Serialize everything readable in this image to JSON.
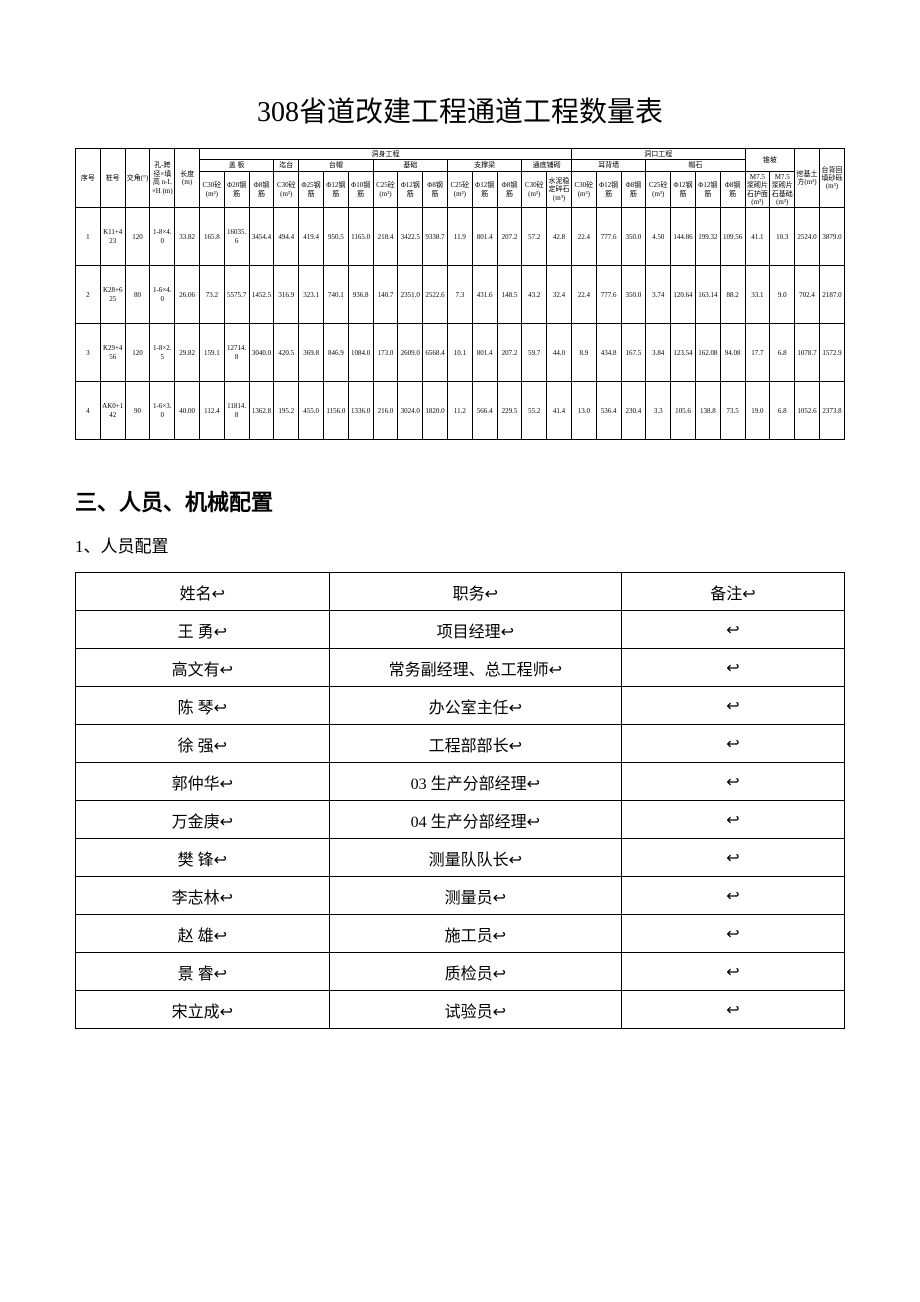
{
  "title": "308省道改建工程通道工程数量表",
  "quantityTable": {
    "groupHeaders": {
      "dongshen": "洞身工程",
      "dongkou": "洞口工程"
    },
    "subHeaders": {
      "gaiban": "盖 板",
      "taitai": "迄台",
      "taimao": "台帽",
      "jichu": "基础",
      "zhichengliang": "支撑梁",
      "tongdaopushe": "通底铺砌",
      "erbeiqiang": "耳背墙",
      "maoshi": "帽石",
      "zhuipo": "锥坡"
    },
    "colHeaders": {
      "xuhao": "序号",
      "zhuanghao": "桩号",
      "jiaojiao": "交角(°)",
      "kongkua": "孔-跨径×填高 n-L×H (m)",
      "changdu": "长度(m)",
      "c30tong": "C30砼(m³)",
      "phi20gang": "Φ20钢筋",
      "phi8gang": "Φ8钢筋",
      "c30tong2": "C30砼(m³)",
      "phi25gang2": "Φ25钢筋",
      "phi12gang2": "Φ12钢筋",
      "phi10gang2": "Φ10钢筋",
      "c25tong3": "C25砼(m³)",
      "phi12gang3": "Φ12钢筋",
      "phi8gang3": "Φ8钢筋",
      "c25tong4": "C25砼(m³)",
      "phi12gang4": "Φ12钢筋",
      "phi8gang4": "Φ8钢筋",
      "c30tong5": "C30砼(m³)",
      "shuini": "水泥稳定碎石(m³)",
      "c30tong6": "C30砼(m³)",
      "phi12gang6": "Φ12钢筋",
      "phi8gang6": "Φ8钢筋",
      "c25tong7": "C25砼(m³)",
      "phi12gang7": "Φ12钢筋",
      "phi12gang7b": "Φ12钢筋",
      "phi8gang7": "Φ8钢筋",
      "m75hu": "M7.5浆砌片石护面(m³)",
      "m75ji": "M7.5浆砌片石基础(m³)",
      "watu": "挖基土方(m³)",
      "taibei": "台背回填砂砾(m³)"
    },
    "rows": [
      [
        "1",
        "K11+423",
        "120",
        "1-8×4.0",
        "33.82",
        "165.8",
        "16035.6",
        "3454.4",
        "494.4",
        "419.4",
        "950.5",
        "1165.0",
        "218.4",
        "3422.5",
        "9338.7",
        "11.9",
        "801.4",
        "207.2",
        "57.2",
        "42.8",
        "22.4",
        "777.6",
        "350.0",
        "4.50",
        "144.86",
        "199.32",
        "109.56",
        "41.1",
        "10.3",
        "2524.0",
        "3879.0"
      ],
      [
        "2",
        "K28+625",
        "80",
        "1-6×4.0",
        "26.06",
        "73.2",
        "5575.7",
        "1452.5",
        "316.9",
        "323.1",
        "740.1",
        "936.8",
        "140.7",
        "2351.0",
        "2522.6",
        "7.3",
        "431.6",
        "148.5",
        "43.2",
        "32.4",
        "22.4",
        "777.6",
        "350.0",
        "3.74",
        "120.64",
        "163.14",
        "88.2",
        "33.1",
        "9.0",
        "702.4",
        "2187.0"
      ],
      [
        "3",
        "K29+456",
        "120",
        "1-8×2.5",
        "29.82",
        "159.1",
        "12714.8",
        "3040.0",
        "420.5",
        "369.8",
        "846.9",
        "1084.0",
        "173.0",
        "2609.0",
        "6568.4",
        "10.1",
        "801.4",
        "207.2",
        "59.7",
        "44.0",
        "8.9",
        "434.8",
        "167.5",
        "3.84",
        "123.54",
        "162.08",
        "94.08",
        "17.7",
        "6.8",
        "1078.7",
        "1572.9"
      ],
      [
        "4",
        "AK0+142",
        "90",
        "1-6×3.0",
        "40.00",
        "112.4",
        "11814.8",
        "1362.8",
        "195.2",
        "455.0",
        "1156.0",
        "1336.0",
        "216.0",
        "3024.0",
        "1820.0",
        "11.2",
        "566.4",
        "229.5",
        "55.2",
        "41.4",
        "13.0",
        "536.4",
        "230.4",
        "3.3",
        "105.6",
        "138.8",
        "73.5",
        "19.0",
        "6.8",
        "1052.6",
        "2373.8"
      ]
    ]
  },
  "section3": {
    "heading": "三、人员、机械配置",
    "sub1": "1、人员配置"
  },
  "staffTable": {
    "headers": {
      "name": "姓名↩",
      "role": "职务↩",
      "remark": "备注↩"
    },
    "rows": [
      {
        "name": "王  勇↩",
        "role": "项目经理↩",
        "remark": "↩"
      },
      {
        "name": "高文有↩",
        "role": "常务副经理、总工程师↩",
        "remark": "↩"
      },
      {
        "name": "陈  琴↩",
        "role": "办公室主任↩",
        "remark": "↩"
      },
      {
        "name": "徐  强↩",
        "role": "工程部部长↩",
        "remark": "↩"
      },
      {
        "name": "郭仲华↩",
        "role": "03 生产分部经理↩",
        "remark": "↩"
      },
      {
        "name": "万金庚↩",
        "role": "04 生产分部经理↩",
        "remark": "↩"
      },
      {
        "name": "樊  锋↩",
        "role": "测量队队长↩",
        "remark": "↩"
      },
      {
        "name": "李志林↩",
        "role": "测量员↩",
        "remark": "↩"
      },
      {
        "name": "赵  雄↩",
        "role": "施工员↩",
        "remark": "↩"
      },
      {
        "name": "景  睿↩",
        "role": "质检员↩",
        "remark": "↩"
      },
      {
        "name": "宋立成↩",
        "role": "试验员↩",
        "remark": "↩"
      }
    ]
  }
}
